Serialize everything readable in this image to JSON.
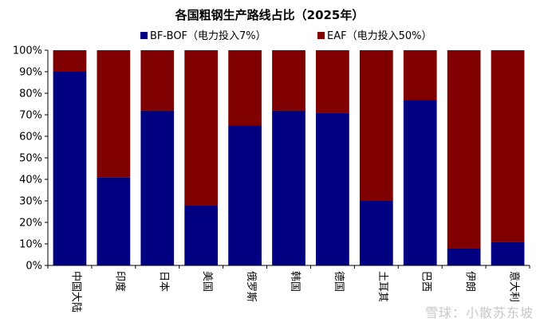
{
  "chart_data": {
    "type": "bar",
    "stacked": true,
    "title": "各国粗钢生产路线占比（2025年）",
    "categories": [
      "中国大陆",
      "印度",
      "日本",
      "美国",
      "俄罗斯",
      "韩国",
      "德国",
      "土耳其",
      "巴西",
      "伊朗",
      "意大利"
    ],
    "series": [
      {
        "name": "BF-BOF（电力投入7%）",
        "color": "#000080",
        "values": [
          90,
          41,
          72,
          28,
          65,
          72,
          71,
          30,
          77,
          8,
          11
        ]
      },
      {
        "name": "EAF（电力投入50%）",
        "color": "#800000",
        "values": [
          10,
          59,
          28,
          72,
          35,
          28,
          29,
          70,
          23,
          92,
          89
        ]
      }
    ],
    "ylim": [
      0,
      100
    ],
    "yticks": [
      "0%",
      "10%",
      "20%",
      "30%",
      "40%",
      "50%",
      "60%",
      "70%",
      "80%",
      "90%",
      "100%"
    ],
    "xlabel": "",
    "ylabel": "",
    "legend_position": "top",
    "grid": false
  },
  "watermark": "雪球：小散苏东坡"
}
